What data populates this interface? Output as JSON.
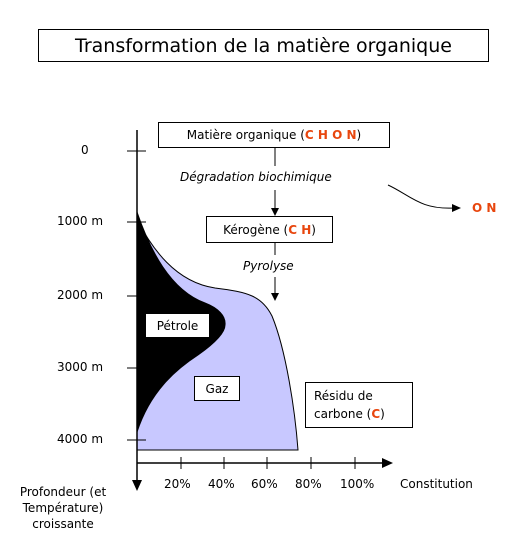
{
  "title": "Transformation de la matière organique",
  "nodes": {
    "matiere_prefix": "Matière organique (",
    "matiere_elements": "C H O N",
    "matiere_suffix": ")",
    "kerogene_prefix": "Kérogène (",
    "kerogene_elements": "C H",
    "kerogene_suffix": ")",
    "petrole": "Pétrole",
    "gaz": "Gaz",
    "residu_line1": "Résidu de",
    "residu_line2_prefix": "carbone (",
    "residu_element": "C",
    "residu_line2_suffix": ")"
  },
  "processes": {
    "degradation": "Dégradation biochimique",
    "pyrolyse": "Pyrolyse",
    "released": "O N"
  },
  "axes": {
    "y_ticks": [
      "0",
      "1000 m",
      "2000 m",
      "3000 m",
      "4000 m"
    ],
    "x_ticks": [
      "20%",
      "40%",
      "60%",
      "80%",
      "100%"
    ],
    "x_label": "Constitution",
    "y_label_line1": "Profondeur (et",
    "y_label_line2": "Température)",
    "y_label_line3": "croissante"
  },
  "colors": {
    "gas_fill": "#c8c8ff",
    "oil_fill": "#000000",
    "highlight": "#e8460e"
  }
}
